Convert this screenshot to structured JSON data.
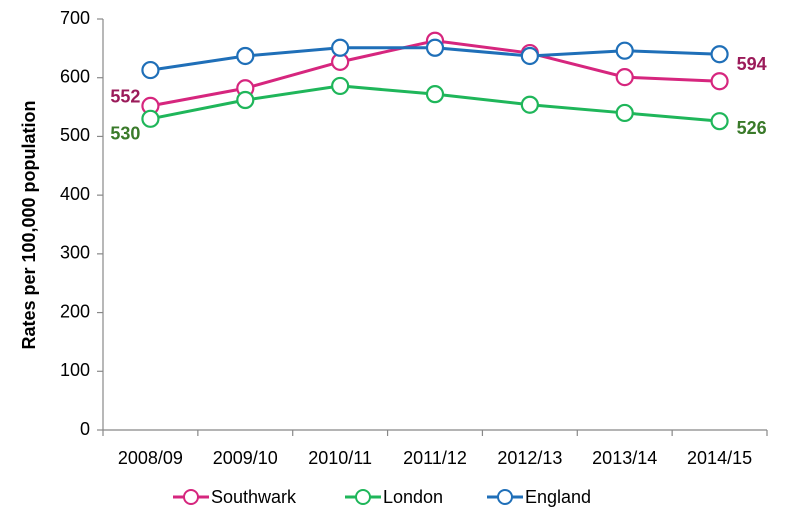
{
  "chart_data": {
    "type": "line",
    "y_label": "Rates per 100,000 population",
    "categories": [
      "2008/09",
      "2009/10",
      "2010/11",
      "2011/12",
      "2012/13",
      "2013/14",
      "2014/15"
    ],
    "series": [
      {
        "name": "Southwark",
        "color": "#d6267e",
        "label_color": "#9b1b5a",
        "values": [
          552,
          582,
          627,
          663,
          642,
          601,
          594
        ]
      },
      {
        "name": "London",
        "color": "#1fb65a",
        "label_color": "#3a7a2a",
        "values": [
          530,
          562,
          586,
          572,
          554,
          540,
          526
        ]
      },
      {
        "name": "England",
        "color": "#1f6fb8",
        "label_color": "#1f6fb8",
        "values": [
          613,
          637,
          651,
          651,
          637,
          646,
          640
        ]
      }
    ],
    "labeled_series": [
      "Southwark",
      "London"
    ],
    "ylim": [
      0,
      700
    ],
    "yticks": [
      0,
      100,
      200,
      300,
      400,
      500,
      600,
      700
    ],
    "grid": false,
    "legend": "bottom"
  }
}
